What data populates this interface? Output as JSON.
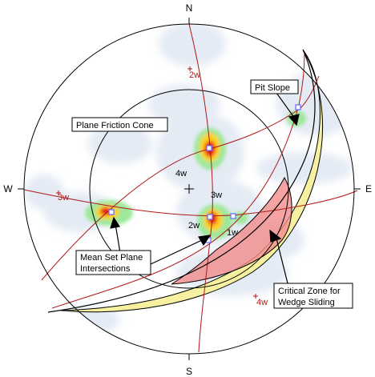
{
  "compass": {
    "north": "N",
    "south": "S",
    "east": "E",
    "west": "W"
  },
  "wedge_labels": [
    "1w",
    "2w",
    "3w",
    "4w"
  ],
  "pole_labels": [
    {
      "label": "2w"
    },
    {
      "label": "3w"
    },
    {
      "label": "4w"
    }
  ],
  "callouts": {
    "pit_slope": "Pit Slope",
    "friction_cone": "Plane Friction Cone",
    "mean_set_line1": "Mean Set Plane",
    "mean_set_line2": "Intersections",
    "critical_line1": "Critical Zone for",
    "critical_line2": "Wedge Sliding"
  },
  "colors": {
    "great_circle": "#b01818",
    "critical_zone": "#f28c8c",
    "daylight_envelope": "#f6f0a0",
    "intersection_marker": "#7070ff",
    "contour_low": "#e4ebf4",
    "contour_mid": "#9ee89a",
    "contour_high": "#ffd21e",
    "contour_peak": "#e6001e"
  }
}
